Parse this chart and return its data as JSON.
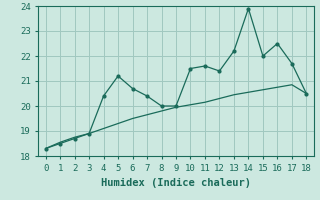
{
  "xlabel": "Humidex (Indice chaleur)",
  "x": [
    0,
    1,
    2,
    3,
    4,
    5,
    6,
    7,
    8,
    9,
    10,
    11,
    12,
    13,
    14,
    15,
    16,
    17,
    18
  ],
  "humidex": [
    18.3,
    18.5,
    18.7,
    18.9,
    20.4,
    21.2,
    20.7,
    20.4,
    20.0,
    20.0,
    21.5,
    21.6,
    21.4,
    22.2,
    23.9,
    22.0,
    22.5,
    21.7,
    20.5
  ],
  "trend": [
    18.3,
    18.55,
    18.75,
    18.9,
    19.1,
    19.3,
    19.5,
    19.65,
    19.8,
    19.95,
    20.05,
    20.15,
    20.3,
    20.45,
    20.55,
    20.65,
    20.75,
    20.85,
    20.5
  ],
  "line_color": "#1a6b5a",
  "bg_color": "#cce8e0",
  "grid_color": "#a0c8c0",
  "ylim": [
    18,
    24
  ],
  "xlim": [
    -0.5,
    18.5
  ],
  "yticks": [
    18,
    19,
    20,
    21,
    22,
    23,
    24
  ],
  "xticks": [
    0,
    1,
    2,
    3,
    4,
    5,
    6,
    7,
    8,
    9,
    10,
    11,
    12,
    13,
    14,
    15,
    16,
    17,
    18
  ],
  "tick_fontsize": 6.5,
  "xlabel_fontsize": 7.5
}
